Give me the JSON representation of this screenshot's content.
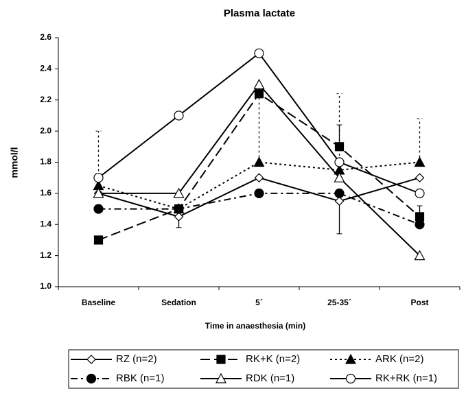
{
  "chart_data": {
    "type": "line",
    "title": "Plasma lactate",
    "x_label": "Time in anaesthesia (min)",
    "y_label": "mmol/l",
    "categories": [
      "Baseline",
      "Sedation",
      "5´",
      "25-35´",
      "Post"
    ],
    "ylim": [
      1.0,
      2.6
    ],
    "yticks": [
      {
        "value": 1.0,
        "label": "1.0"
      },
      1.2,
      1.4,
      1.6,
      1.8,
      {
        "value": 2.0,
        "label": "2.0"
      },
      2.2,
      2.4,
      2.6
    ],
    "series": [
      {
        "name": "RZ (n=2)",
        "color": "#000000",
        "dash": "solid",
        "marker": "diamond",
        "filled": false,
        "values": [
          1.6,
          1.45,
          1.7,
          1.55,
          1.7
        ],
        "errors": [
          null,
          0.07,
          null,
          0.21,
          null
        ],
        "error_side": "down",
        "error_dash": "solid"
      },
      {
        "name": "RK+K (n=2)",
        "color": "#000000",
        "dash": "long",
        "marker": "square",
        "filled": true,
        "values": [
          1.3,
          1.5,
          2.24,
          1.9,
          1.45
        ],
        "errors": [
          null,
          null,
          null,
          0.14,
          0.07
        ],
        "error_side": "up",
        "error_dash": "solid"
      },
      {
        "name": "ARK (n=2)",
        "color": "#000000",
        "dash": "dot",
        "marker": "triangle",
        "filled": true,
        "values": [
          1.65,
          1.5,
          1.8,
          1.75,
          1.8
        ],
        "errors": [
          0.35,
          null,
          0.5,
          0.49,
          0.28
        ],
        "error_side": "up",
        "error_dash": "dot"
      },
      {
        "name": "RBK (n=1)",
        "color": "#000000",
        "dash": "dashdot",
        "marker": "circle",
        "filled": true,
        "values": [
          1.5,
          1.5,
          1.6,
          1.6,
          1.4
        ]
      },
      {
        "name": "RDK (n=1)",
        "color": "#000000",
        "dash": "solid",
        "marker": "triangle",
        "filled": false,
        "values": [
          1.6,
          1.6,
          2.3,
          1.7,
          1.2
        ]
      },
      {
        "name": "RK+RK (n=1)",
        "color": "#000000",
        "dash": "solid",
        "marker": "circle",
        "filled": false,
        "values": [
          1.7,
          2.1,
          2.5,
          1.8,
          1.6
        ]
      }
    ]
  }
}
